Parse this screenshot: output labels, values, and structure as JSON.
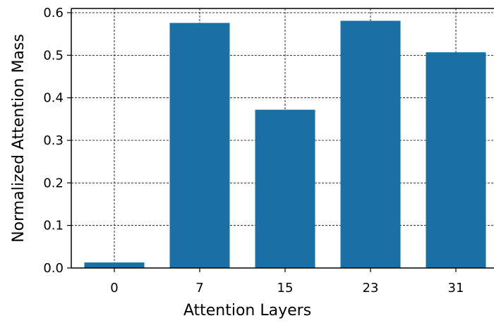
{
  "chart_data": {
    "type": "bar",
    "title": "",
    "xlabel": "Attention Layers",
    "ylabel": "Normalized Attention Mass",
    "categories": [
      "0",
      "7",
      "15",
      "23",
      "31"
    ],
    "values": [
      0.013,
      0.576,
      0.372,
      0.581,
      0.507
    ],
    "ylim": [
      0,
      0.61
    ],
    "yticks": [
      "0.0",
      "0.1",
      "0.2",
      "0.3",
      "0.4",
      "0.5",
      "0.6"
    ],
    "grid": true,
    "bar_color": "#1a70a5"
  }
}
